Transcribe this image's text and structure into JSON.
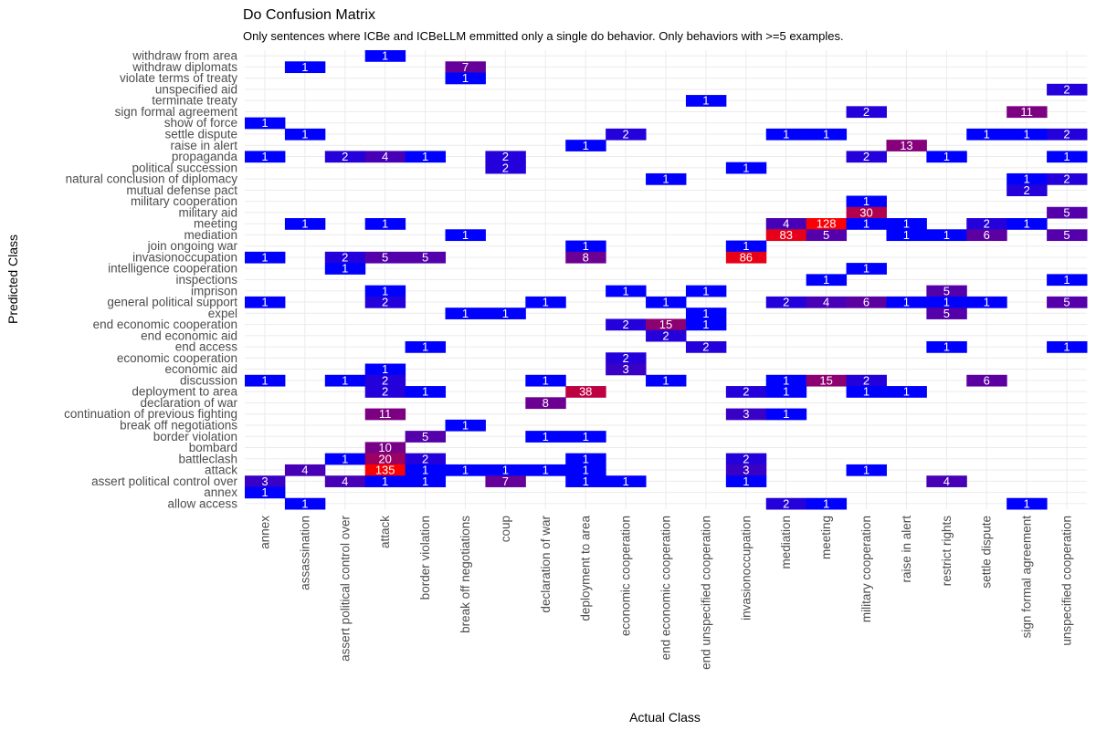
{
  "chart_data": {
    "type": "heatmap",
    "title": "Do Confusion Matrix",
    "subtitle": "Only sentences where ICBe and ICBeLLM emmitted only a single do behavior. Only behaviors with >=5 examples.",
    "xlabel": "Actual Class",
    "ylabel": "Predicted Class",
    "colors": {
      "low": "#0000ff",
      "high": "#ff0000"
    },
    "grid": true,
    "x_categories": [
      "annex",
      "assassination",
      "assert political control over",
      "attack",
      "border violation",
      "break off negotiations",
      "coup",
      "declaration of war",
      "deployment to area",
      "economic cooperation",
      "end economic cooperation",
      "end unspecified cooperation",
      "invasionoccupation",
      "mediation",
      "meeting",
      "military cooperation",
      "raise in alert",
      "restrict rights",
      "settle dispute",
      "sign formal agreement",
      "unspecified cooperation"
    ],
    "y_categories": [
      "withdraw from area",
      "withdraw diplomats",
      "violate terms of treaty",
      "unspecified aid",
      "terminate treaty",
      "sign formal agreement",
      "show of force",
      "settle dispute",
      "raise in alert",
      "propaganda",
      "political succession",
      "natural conclusion of diplomacy",
      "mutual defense pact",
      "military cooperation",
      "military aid",
      "meeting",
      "mediation",
      "join ongoing war",
      "invasionoccupation",
      "intelligence cooperation",
      "inspections",
      "imprison",
      "general political support",
      "expel",
      "end economic cooperation",
      "end economic aid",
      "end access",
      "economic cooperation",
      "economic aid",
      "discussion",
      "deployment to area",
      "declaration of war",
      "continuation of previous fighting",
      "break off negotiations",
      "border violation",
      "bombard",
      "battleclash",
      "attack",
      "assert political control over",
      "annex",
      "allow access"
    ],
    "cells": [
      {
        "x": "attack",
        "y": "withdraw from area",
        "v": 1
      },
      {
        "x": "assassination",
        "y": "withdraw diplomats",
        "v": 1
      },
      {
        "x": "break off negotiations",
        "y": "withdraw diplomats",
        "v": 7
      },
      {
        "x": "break off negotiations",
        "y": "violate terms of treaty",
        "v": 1
      },
      {
        "x": "unspecified cooperation",
        "y": "unspecified aid",
        "v": 2
      },
      {
        "x": "end unspecified cooperation",
        "y": "terminate treaty",
        "v": 1
      },
      {
        "x": "military cooperation",
        "y": "sign formal agreement",
        "v": 2
      },
      {
        "x": "sign formal agreement",
        "y": "sign formal agreement",
        "v": 11
      },
      {
        "x": "annex",
        "y": "show of force",
        "v": 1
      },
      {
        "x": "assassination",
        "y": "settle dispute",
        "v": 1
      },
      {
        "x": "economic cooperation",
        "y": "settle dispute",
        "v": 2
      },
      {
        "x": "mediation",
        "y": "settle dispute",
        "v": 1
      },
      {
        "x": "meeting",
        "y": "settle dispute",
        "v": 1
      },
      {
        "x": "settle dispute",
        "y": "settle dispute",
        "v": 1
      },
      {
        "x": "sign formal agreement",
        "y": "settle dispute",
        "v": 1
      },
      {
        "x": "unspecified cooperation",
        "y": "settle dispute",
        "v": 2
      },
      {
        "x": "deployment to area",
        "y": "raise in alert",
        "v": 1
      },
      {
        "x": "raise in alert",
        "y": "raise in alert",
        "v": 13
      },
      {
        "x": "annex",
        "y": "propaganda",
        "v": 1
      },
      {
        "x": "assert political control over",
        "y": "propaganda",
        "v": 2
      },
      {
        "x": "attack",
        "y": "propaganda",
        "v": 4
      },
      {
        "x": "border violation",
        "y": "propaganda",
        "v": 1
      },
      {
        "x": "coup",
        "y": "propaganda",
        "v": 2
      },
      {
        "x": "military cooperation",
        "y": "propaganda",
        "v": 2
      },
      {
        "x": "restrict rights",
        "y": "propaganda",
        "v": 1
      },
      {
        "x": "unspecified cooperation",
        "y": "propaganda",
        "v": 1
      },
      {
        "x": "coup",
        "y": "political succession",
        "v": 2
      },
      {
        "x": "invasionoccupation",
        "y": "political succession",
        "v": 1
      },
      {
        "x": "end economic cooperation",
        "y": "natural conclusion of diplomacy",
        "v": 1
      },
      {
        "x": "sign formal agreement",
        "y": "natural conclusion of diplomacy",
        "v": 1
      },
      {
        "x": "unspecified cooperation",
        "y": "natural conclusion of diplomacy",
        "v": 2
      },
      {
        "x": "sign formal agreement",
        "y": "mutual defense pact",
        "v": 2
      },
      {
        "x": "military cooperation",
        "y": "military cooperation",
        "v": 1
      },
      {
        "x": "military cooperation",
        "y": "military aid",
        "v": 30
      },
      {
        "x": "unspecified cooperation",
        "y": "military aid",
        "v": 5
      },
      {
        "x": "assassination",
        "y": "meeting",
        "v": 1
      },
      {
        "x": "attack",
        "y": "meeting",
        "v": 1
      },
      {
        "x": "mediation",
        "y": "meeting",
        "v": 4
      },
      {
        "x": "meeting",
        "y": "meeting",
        "v": 128
      },
      {
        "x": "military cooperation",
        "y": "meeting",
        "v": 1
      },
      {
        "x": "raise in alert",
        "y": "meeting",
        "v": 1
      },
      {
        "x": "settle dispute",
        "y": "meeting",
        "v": 2
      },
      {
        "x": "sign formal agreement",
        "y": "meeting",
        "v": 1
      },
      {
        "x": "break off negotiations",
        "y": "mediation",
        "v": 1
      },
      {
        "x": "mediation",
        "y": "mediation",
        "v": 83
      },
      {
        "x": "meeting",
        "y": "mediation",
        "v": 5
      },
      {
        "x": "raise in alert",
        "y": "mediation",
        "v": 1
      },
      {
        "x": "restrict rights",
        "y": "mediation",
        "v": 1
      },
      {
        "x": "settle dispute",
        "y": "mediation",
        "v": 6
      },
      {
        "x": "unspecified cooperation",
        "y": "mediation",
        "v": 5
      },
      {
        "x": "deployment to area",
        "y": "join ongoing war",
        "v": 1
      },
      {
        "x": "invasionoccupation",
        "y": "join ongoing war",
        "v": 1
      },
      {
        "x": "annex",
        "y": "invasionoccupation",
        "v": 1
      },
      {
        "x": "assert political control over",
        "y": "invasionoccupation",
        "v": 2
      },
      {
        "x": "attack",
        "y": "invasionoccupation",
        "v": 5
      },
      {
        "x": "border violation",
        "y": "invasionoccupation",
        "v": 5
      },
      {
        "x": "deployment to area",
        "y": "invasionoccupation",
        "v": 8
      },
      {
        "x": "invasionoccupation",
        "y": "invasionoccupation",
        "v": 86
      },
      {
        "x": "assert political control over",
        "y": "intelligence cooperation",
        "v": 1
      },
      {
        "x": "military cooperation",
        "y": "intelligence cooperation",
        "v": 1
      },
      {
        "x": "meeting",
        "y": "inspections",
        "v": 1
      },
      {
        "x": "unspecified cooperation",
        "y": "inspections",
        "v": 1
      },
      {
        "x": "attack",
        "y": "imprison",
        "v": 1
      },
      {
        "x": "economic cooperation",
        "y": "imprison",
        "v": 1
      },
      {
        "x": "end unspecified cooperation",
        "y": "imprison",
        "v": 1
      },
      {
        "x": "restrict rights",
        "y": "imprison",
        "v": 5
      },
      {
        "x": "annex",
        "y": "general political support",
        "v": 1
      },
      {
        "x": "attack",
        "y": "general political support",
        "v": 2
      },
      {
        "x": "declaration of war",
        "y": "general political support",
        "v": 1
      },
      {
        "x": "end economic cooperation",
        "y": "general political support",
        "v": 1
      },
      {
        "x": "mediation",
        "y": "general political support",
        "v": 2
      },
      {
        "x": "meeting",
        "y": "general political support",
        "v": 4
      },
      {
        "x": "military cooperation",
        "y": "general political support",
        "v": 6
      },
      {
        "x": "raise in alert",
        "y": "general political support",
        "v": 1
      },
      {
        "x": "restrict rights",
        "y": "general political support",
        "v": 1
      },
      {
        "x": "settle dispute",
        "y": "general political support",
        "v": 1
      },
      {
        "x": "unspecified cooperation",
        "y": "general political support",
        "v": 5
      },
      {
        "x": "break off negotiations",
        "y": "expel",
        "v": 1
      },
      {
        "x": "coup",
        "y": "expel",
        "v": 1
      },
      {
        "x": "end unspecified cooperation",
        "y": "expel",
        "v": 1
      },
      {
        "x": "restrict rights",
        "y": "expel",
        "v": 5
      },
      {
        "x": "economic cooperation",
        "y": "end economic cooperation",
        "v": 2
      },
      {
        "x": "end economic cooperation",
        "y": "end economic cooperation",
        "v": 15
      },
      {
        "x": "end unspecified cooperation",
        "y": "end economic cooperation",
        "v": 1
      },
      {
        "x": "end economic cooperation",
        "y": "end economic aid",
        "v": 2
      },
      {
        "x": "border violation",
        "y": "end access",
        "v": 1
      },
      {
        "x": "end unspecified cooperation",
        "y": "end access",
        "v": 2
      },
      {
        "x": "restrict rights",
        "y": "end access",
        "v": 1
      },
      {
        "x": "unspecified cooperation",
        "y": "end access",
        "v": 1
      },
      {
        "x": "economic cooperation",
        "y": "economic cooperation",
        "v": 2
      },
      {
        "x": "attack",
        "y": "economic aid",
        "v": 1
      },
      {
        "x": "economic cooperation",
        "y": "economic aid",
        "v": 3
      },
      {
        "x": "annex",
        "y": "discussion",
        "v": 1
      },
      {
        "x": "assert political control over",
        "y": "discussion",
        "v": 1
      },
      {
        "x": "attack",
        "y": "discussion",
        "v": 2
      },
      {
        "x": "declaration of war",
        "y": "discussion",
        "v": 1
      },
      {
        "x": "end economic cooperation",
        "y": "discussion",
        "v": 1
      },
      {
        "x": "mediation",
        "y": "discussion",
        "v": 1
      },
      {
        "x": "meeting",
        "y": "discussion",
        "v": 15
      },
      {
        "x": "military cooperation",
        "y": "discussion",
        "v": 2
      },
      {
        "x": "settle dispute",
        "y": "discussion",
        "v": 6
      },
      {
        "x": "attack",
        "y": "deployment to area",
        "v": 2
      },
      {
        "x": "border violation",
        "y": "deployment to area",
        "v": 1
      },
      {
        "x": "deployment to area",
        "y": "deployment to area",
        "v": 38
      },
      {
        "x": "invasionoccupation",
        "y": "deployment to area",
        "v": 2
      },
      {
        "x": "mediation",
        "y": "deployment to area",
        "v": 1
      },
      {
        "x": "military cooperation",
        "y": "deployment to area",
        "v": 1
      },
      {
        "x": "raise in alert",
        "y": "deployment to area",
        "v": 1
      },
      {
        "x": "declaration of war",
        "y": "declaration of war",
        "v": 8
      },
      {
        "x": "attack",
        "y": "continuation of previous fighting",
        "v": 11
      },
      {
        "x": "invasionoccupation",
        "y": "continuation of previous fighting",
        "v": 3
      },
      {
        "x": "mediation",
        "y": "continuation of previous fighting",
        "v": 1
      },
      {
        "x": "break off negotiations",
        "y": "break off negotiations",
        "v": 1
      },
      {
        "x": "border violation",
        "y": "border violation",
        "v": 5
      },
      {
        "x": "declaration of war",
        "y": "border violation",
        "v": 1
      },
      {
        "x": "deployment to area",
        "y": "border violation",
        "v": 1
      },
      {
        "x": "attack",
        "y": "bombard",
        "v": 10
      },
      {
        "x": "assert political control over",
        "y": "battleclash",
        "v": 1
      },
      {
        "x": "attack",
        "y": "battleclash",
        "v": 20
      },
      {
        "x": "border violation",
        "y": "battleclash",
        "v": 2
      },
      {
        "x": "deployment to area",
        "y": "battleclash",
        "v": 1
      },
      {
        "x": "invasionoccupation",
        "y": "battleclash",
        "v": 2
      },
      {
        "x": "assassination",
        "y": "attack",
        "v": 4
      },
      {
        "x": "attack",
        "y": "attack",
        "v": 135
      },
      {
        "x": "border violation",
        "y": "attack",
        "v": 1
      },
      {
        "x": "break off negotiations",
        "y": "attack",
        "v": 1
      },
      {
        "x": "coup",
        "y": "attack",
        "v": 1
      },
      {
        "x": "declaration of war",
        "y": "attack",
        "v": 1
      },
      {
        "x": "deployment to area",
        "y": "attack",
        "v": 1
      },
      {
        "x": "invasionoccupation",
        "y": "attack",
        "v": 3
      },
      {
        "x": "military cooperation",
        "y": "attack",
        "v": 1
      },
      {
        "x": "annex",
        "y": "assert political control over",
        "v": 3
      },
      {
        "x": "assert political control over",
        "y": "assert political control over",
        "v": 4
      },
      {
        "x": "attack",
        "y": "assert political control over",
        "v": 1
      },
      {
        "x": "border violation",
        "y": "assert political control over",
        "v": 1
      },
      {
        "x": "coup",
        "y": "assert political control over",
        "v": 7
      },
      {
        "x": "deployment to area",
        "y": "assert political control over",
        "v": 1
      },
      {
        "x": "economic cooperation",
        "y": "assert political control over",
        "v": 1
      },
      {
        "x": "invasionoccupation",
        "y": "assert political control over",
        "v": 1
      },
      {
        "x": "restrict rights",
        "y": "assert political control over",
        "v": 4
      },
      {
        "x": "annex",
        "y": "annex",
        "v": 1
      },
      {
        "x": "assassination",
        "y": "allow access",
        "v": 1
      },
      {
        "x": "mediation",
        "y": "allow access",
        "v": 2
      },
      {
        "x": "meeting",
        "y": "allow access",
        "v": 1
      },
      {
        "x": "sign formal agreement",
        "y": "allow access",
        "v": 1
      }
    ]
  }
}
